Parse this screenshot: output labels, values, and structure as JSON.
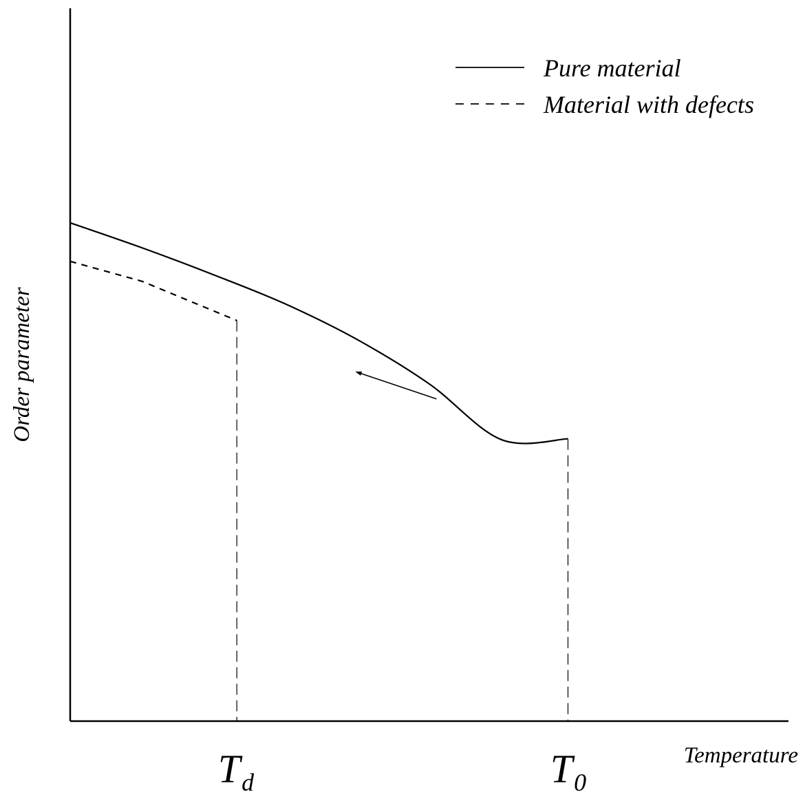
{
  "chart_data": {
    "type": "line",
    "title": "",
    "xlabel": "Temperature",
    "ylabel": "Order parameter",
    "xlim": [
      0,
      1
    ],
    "ylim": [
      0,
      1
    ],
    "grid": false,
    "legend_position": "top-right",
    "tick_labels": {
      "x": [
        {
          "main": "T",
          "sub": "d",
          "value": 0.232
        },
        {
          "main": "T",
          "sub": "0",
          "value": 0.693
        }
      ]
    },
    "legend": [
      {
        "label": "Pure material",
        "style": "solid"
      },
      {
        "label": "Material with defects",
        "style": "dashed"
      }
    ],
    "series": [
      {
        "name": "Pure material",
        "style": "solid",
        "points": [
          [
            0.0,
            0.699
          ],
          [
            0.1,
            0.664
          ],
          [
            0.2,
            0.626
          ],
          [
            0.3,
            0.585
          ],
          [
            0.4,
            0.535
          ],
          [
            0.5,
            0.473
          ],
          [
            0.6,
            0.395
          ],
          [
            0.693,
            0.396
          ]
        ],
        "drop": {
          "x": 0.693,
          "from": 0.396,
          "to": 0.0
        }
      },
      {
        "name": "Material with defects",
        "style": "dashed",
        "points": [
          [
            0.0,
            0.645
          ],
          [
            0.1,
            0.617
          ],
          [
            0.232,
            0.562
          ]
        ],
        "drop": {
          "x": 0.232,
          "from": 0.562,
          "to": 0.0
        }
      }
    ],
    "annotations": [
      {
        "type": "arrow",
        "from": [
          0.51,
          0.452
        ],
        "to": [
          0.398,
          0.49
        ]
      }
    ]
  }
}
